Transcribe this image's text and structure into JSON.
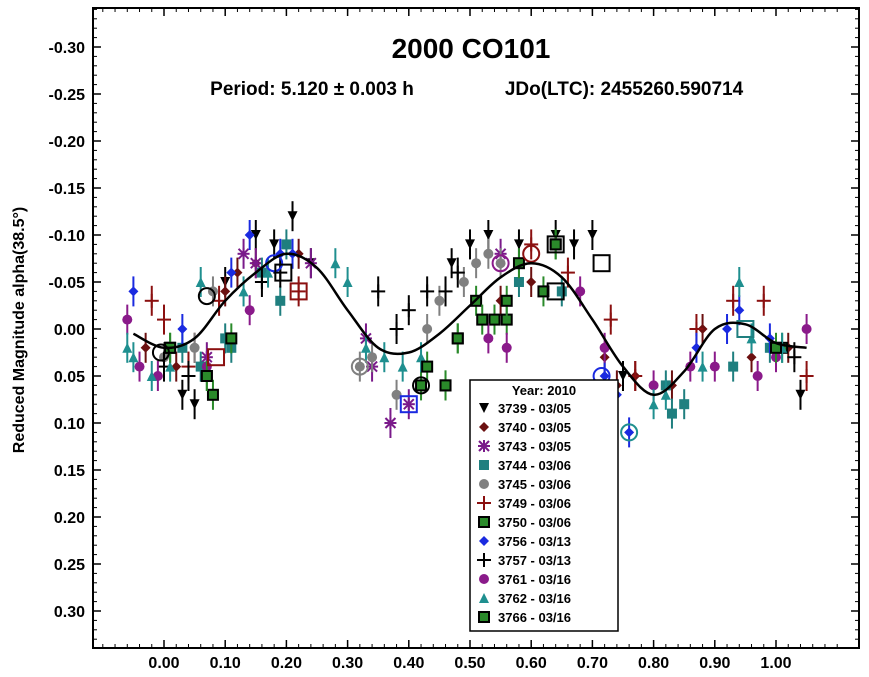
{
  "chart_data": {
    "type": "scatter",
    "title": "2000 CO101",
    "subtitle_period": "Period: 5.120 ± 0.003 h",
    "subtitle_epoch": "JDo(LTC): 2455260.590714",
    "xlabel": "",
    "ylabel": "Reduced Magnitude alpha(38.5°)",
    "xlim": [
      -0.1,
      1.1
    ],
    "ylim": [
      -0.35,
      0.35
    ],
    "y_inverted": true,
    "x_ticks": [
      "0.00",
      "0.10",
      "0.20",
      "0.30",
      "0.40",
      "0.50",
      "0.60",
      "0.70",
      "0.80",
      "0.90",
      "1.00"
    ],
    "y_ticks": [
      "-0.30",
      "-0.25",
      "-0.20",
      "-0.15",
      "-0.10",
      "-0.05",
      "0.00",
      "0.05",
      "0.10",
      "0.15",
      "0.20",
      "0.25",
      "0.30"
    ],
    "legend_title": "Year: 2010",
    "legend_placement": "bottom-center",
    "fit_curve": {
      "x": [
        -0.05,
        0.0,
        0.05,
        0.1,
        0.15,
        0.2,
        0.25,
        0.3,
        0.35,
        0.4,
        0.45,
        0.5,
        0.55,
        0.6,
        0.65,
        0.7,
        0.75,
        0.8,
        0.85,
        0.9,
        0.95,
        1.0,
        1.05
      ],
      "y": [
        0.005,
        0.02,
        0.01,
        -0.03,
        -0.06,
        -0.08,
        -0.065,
        -0.02,
        0.02,
        0.025,
        0.005,
        -0.025,
        -0.055,
        -0.07,
        -0.055,
        -0.01,
        0.04,
        0.07,
        0.045,
        0.0,
        -0.005,
        0.015,
        0.02
      ]
    },
    "series": [
      {
        "name": "3739 - 03/05",
        "marker": "triangle-down",
        "color": "#000000",
        "points": [
          [
            0.03,
            0.07
          ],
          [
            0.05,
            0.08
          ],
          [
            0.1,
            -0.05
          ],
          [
            0.15,
            -0.1
          ],
          [
            0.18,
            -0.09
          ],
          [
            0.21,
            -0.12
          ],
          [
            0.24,
            -0.07
          ],
          [
            0.47,
            -0.07
          ],
          [
            0.5,
            -0.09
          ],
          [
            0.53,
            -0.1
          ],
          [
            0.58,
            -0.09
          ],
          [
            0.64,
            -0.1
          ],
          [
            0.67,
            -0.09
          ],
          [
            0.7,
            -0.1
          ],
          [
            0.75,
            0.05
          ],
          [
            1.04,
            0.07
          ]
        ]
      },
      {
        "name": "3740 - 03/05",
        "marker": "diamond",
        "color": "#6b1010",
        "points": [
          [
            -0.03,
            0.02
          ],
          [
            0.02,
            0.04
          ],
          [
            0.05,
            0.02
          ],
          [
            0.1,
            -0.04
          ],
          [
            0.12,
            -0.06
          ],
          [
            0.15,
            -0.07
          ],
          [
            0.22,
            -0.08
          ],
          [
            0.55,
            -0.03
          ],
          [
            0.6,
            -0.05
          ],
          [
            0.72,
            0.03
          ],
          [
            0.74,
            0.06
          ],
          [
            0.77,
            0.05
          ],
          [
            0.83,
            0.06
          ],
          [
            0.88,
            0.0
          ],
          [
            0.96,
            0.03
          ],
          [
            1.02,
            0.02
          ]
        ]
      },
      {
        "name": "3743 - 03/05",
        "marker": "asterisk",
        "color": "#7a1a8a",
        "points": [
          [
            0.07,
            0.03
          ],
          [
            0.13,
            -0.08
          ],
          [
            0.15,
            -0.07
          ],
          [
            0.24,
            -0.07
          ],
          [
            0.33,
            0.01
          ],
          [
            0.34,
            0.04
          ],
          [
            0.37,
            0.1
          ],
          [
            0.4,
            0.08
          ],
          [
            0.55,
            -0.08
          ]
        ]
      },
      {
        "name": "3744 - 03/06",
        "marker": "square",
        "color": "#1f7f7f",
        "points": [
          [
            0.03,
            0.02
          ],
          [
            0.06,
            0.04
          ],
          [
            0.1,
            0.01
          ],
          [
            0.11,
            0.02
          ],
          [
            0.16,
            -0.06
          ],
          [
            0.19,
            -0.03
          ],
          [
            0.2,
            -0.09
          ],
          [
            0.58,
            -0.05
          ],
          [
            0.65,
            -0.04
          ],
          [
            0.82,
            0.06
          ],
          [
            0.83,
            0.09
          ],
          [
            0.85,
            0.08
          ],
          [
            0.93,
            0.04
          ],
          [
            0.99,
            0.02
          ]
        ]
      },
      {
        "name": "3745 - 03/06",
        "marker": "circle",
        "color": "#808080",
        "points": [
          [
            0.0,
            0.03
          ],
          [
            0.05,
            0.02
          ],
          [
            0.08,
            -0.04
          ],
          [
            0.32,
            0.04
          ],
          [
            0.34,
            0.03
          ],
          [
            0.38,
            0.07
          ],
          [
            0.43,
            0.0
          ],
          [
            0.45,
            -0.03
          ],
          [
            0.49,
            -0.05
          ],
          [
            0.51,
            -0.07
          ],
          [
            0.53,
            -0.08
          ],
          [
            0.55,
            -0.07
          ]
        ]
      },
      {
        "name": "3749 - 03/06",
        "marker": "plus",
        "color": "#8b1010",
        "points": [
          [
            -0.02,
            -0.03
          ],
          [
            0.0,
            -0.01
          ],
          [
            0.04,
            0.04
          ],
          [
            0.09,
            -0.03
          ],
          [
            0.22,
            -0.04
          ],
          [
            0.6,
            -0.09
          ],
          [
            0.66,
            -0.06
          ],
          [
            0.73,
            -0.01
          ],
          [
            0.77,
            0.05
          ],
          [
            0.87,
            0.0
          ],
          [
            0.93,
            -0.03
          ],
          [
            0.98,
            -0.03
          ],
          [
            1.05,
            0.05
          ]
        ]
      },
      {
        "name": "3750 - 03/06",
        "marker": "square-black",
        "color": "#2a8a2a",
        "points": [
          [
            0.01,
            0.02
          ],
          [
            0.07,
            0.05
          ],
          [
            0.08,
            0.07
          ],
          [
            0.42,
            0.06
          ],
          [
            0.46,
            0.06
          ],
          [
            0.48,
            0.01
          ],
          [
            0.51,
            -0.03
          ],
          [
            0.54,
            -0.01
          ],
          [
            0.56,
            -0.01
          ],
          [
            0.58,
            -0.07
          ],
          [
            0.62,
            -0.04
          ],
          [
            0.64,
            -0.09
          ],
          [
            1.01,
            0.02
          ]
        ]
      },
      {
        "name": "3756 - 03/13",
        "marker": "diamond",
        "color": "#1a2ae0",
        "points": [
          [
            -0.05,
            -0.04
          ],
          [
            0.03,
            0.0
          ],
          [
            0.11,
            -0.06
          ],
          [
            0.14,
            -0.1
          ],
          [
            0.19,
            -0.08
          ],
          [
            0.21,
            -0.08
          ],
          [
            0.72,
            0.05
          ],
          [
            0.74,
            0.07
          ],
          [
            0.76,
            0.11
          ],
          [
            0.87,
            0.02
          ],
          [
            0.92,
            0.0
          ],
          [
            0.94,
            -0.02
          ],
          [
            0.99,
            0.01
          ]
        ]
      },
      {
        "name": "3757 - 03/13",
        "marker": "plus",
        "color": "#000000",
        "points": [
          [
            0.0,
            0.04
          ],
          [
            0.04,
            0.05
          ],
          [
            0.16,
            -0.05
          ],
          [
            0.19,
            -0.06
          ],
          [
            0.35,
            -0.04
          ],
          [
            0.38,
            0.0
          ],
          [
            0.4,
            -0.02
          ],
          [
            0.43,
            -0.04
          ],
          [
            0.46,
            -0.04
          ],
          [
            0.48,
            -0.06
          ],
          [
            1.03,
            0.03
          ]
        ]
      },
      {
        "name": "3761 - 03/16",
        "marker": "circle",
        "color": "#8a1a8a",
        "points": [
          [
            -0.06,
            -0.01
          ],
          [
            -0.04,
            0.04
          ],
          [
            -0.01,
            0.05
          ],
          [
            0.07,
            0.04
          ],
          [
            0.14,
            -0.02
          ],
          [
            0.53,
            0.01
          ],
          [
            0.56,
            0.02
          ],
          [
            0.68,
            -0.04
          ],
          [
            0.72,
            0.02
          ],
          [
            0.8,
            0.06
          ],
          [
            0.86,
            0.04
          ],
          [
            0.9,
            0.04
          ],
          [
            0.97,
            0.05
          ],
          [
            1.0,
            0.03
          ],
          [
            1.05,
            0.0
          ]
        ]
      },
      {
        "name": "3762 - 03/16",
        "marker": "triangle-up",
        "color": "#1f8f8f",
        "points": [
          [
            -0.06,
            0.02
          ],
          [
            -0.05,
            0.03
          ],
          [
            -0.02,
            0.05
          ],
          [
            0.01,
            0.04
          ],
          [
            0.06,
            -0.05
          ],
          [
            0.13,
            -0.04
          ],
          [
            0.17,
            -0.06
          ],
          [
            0.28,
            -0.07
          ],
          [
            0.3,
            -0.05
          ],
          [
            0.33,
            0.02
          ],
          [
            0.36,
            0.03
          ],
          [
            0.39,
            0.04
          ],
          [
            0.42,
            0.03
          ],
          [
            0.8,
            0.08
          ],
          [
            0.82,
            0.07
          ],
          [
            0.88,
            0.04
          ],
          [
            0.94,
            -0.05
          ],
          [
            0.96,
            0.01
          ],
          [
            1.01,
            0.02
          ]
        ]
      },
      {
        "name": "3766 - 03/16",
        "marker": "square-black",
        "color": "#2a8a2a",
        "points": [
          [
            0.01,
            0.02
          ],
          [
            0.07,
            0.05
          ],
          [
            0.11,
            0.01
          ],
          [
            0.43,
            0.04
          ],
          [
            0.46,
            0.06
          ],
          [
            0.48,
            0.01
          ],
          [
            0.52,
            -0.01
          ],
          [
            0.56,
            -0.03
          ],
          [
            0.64,
            -0.09
          ],
          [
            1.0,
            0.02
          ]
        ]
      }
    ],
    "open_markers": [
      {
        "shape": "circle",
        "color": "#808080",
        "x": 0.32,
        "y": 0.04
      },
      {
        "shape": "circle",
        "color": "#000000",
        "x": 0.42,
        "y": 0.06
      },
      {
        "shape": "circle",
        "color": "#8b1010",
        "x": 0.6,
        "y": -0.08
      },
      {
        "shape": "circle",
        "color": "#8a1a8a",
        "x": 0.55,
        "y": -0.07
      },
      {
        "shape": "circle",
        "color": "#1a2ae0",
        "x": 0.715,
        "y": 0.05
      },
      {
        "shape": "circle",
        "color": "#1f8f8f",
        "x": 0.76,
        "y": 0.11
      },
      {
        "shape": "circle",
        "color": "#000000",
        "x": -0.005,
        "y": 0.025
      },
      {
        "shape": "circle",
        "color": "#000000",
        "x": 0.07,
        "y": -0.035
      },
      {
        "shape": "circle",
        "color": "#1a2ae0",
        "x": 0.18,
        "y": -0.07
      },
      {
        "shape": "square",
        "color": "#000000",
        "x": 0.64,
        "y": -0.09
      },
      {
        "shape": "square",
        "color": "#000000",
        "x": 0.64,
        "y": -0.04
      },
      {
        "shape": "square",
        "color": "#000000",
        "x": 0.715,
        "y": -0.07
      },
      {
        "shape": "square",
        "color": "#8b1010",
        "x": 0.22,
        "y": -0.04
      },
      {
        "shape": "square",
        "color": "#8b1010",
        "x": 0.085,
        "y": 0.03
      },
      {
        "shape": "square",
        "color": "#1a2ae0",
        "x": 0.4,
        "y": 0.08
      },
      {
        "shape": "square",
        "color": "#1f7f7f",
        "x": 0.95,
        "y": 0.0
      },
      {
        "shape": "square",
        "color": "#000000",
        "x": 0.195,
        "y": -0.06
      }
    ]
  }
}
